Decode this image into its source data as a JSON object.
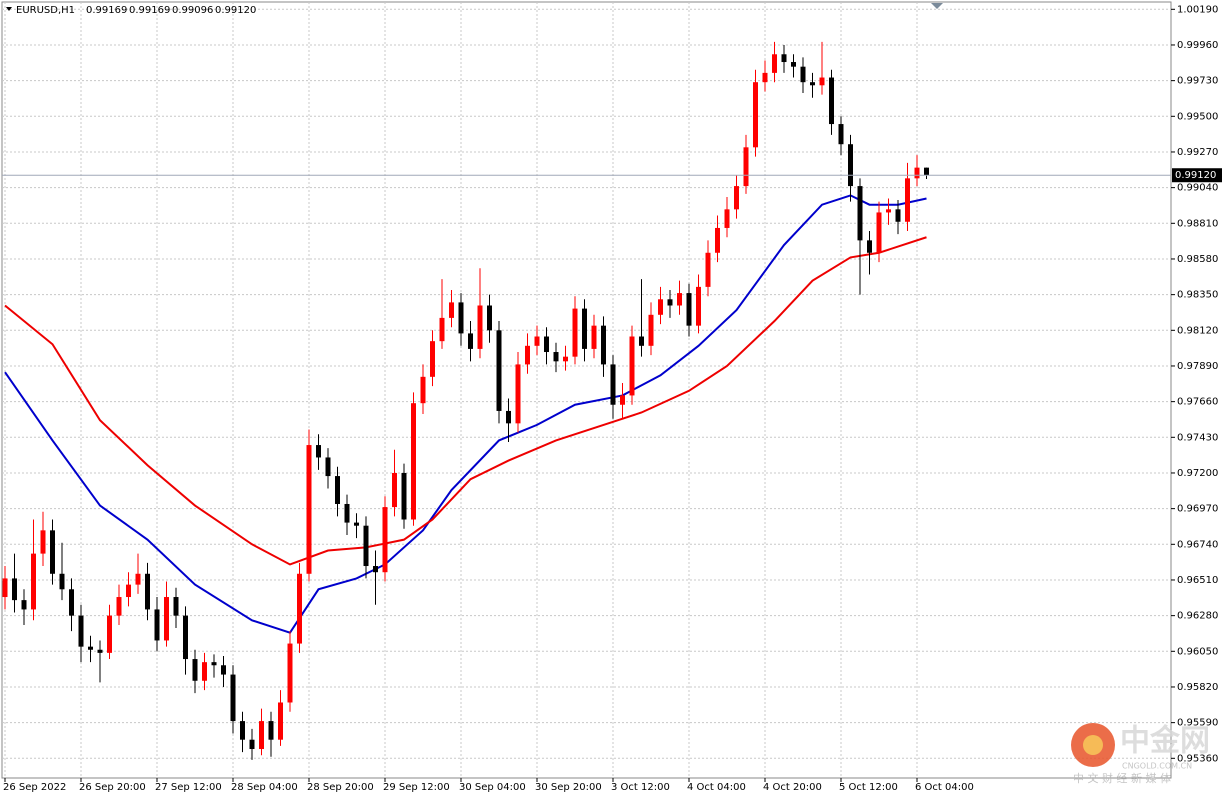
{
  "chart_data": {
    "type": "candlestick",
    "symbol": "EURUSD,H1",
    "ohlc_labels": [
      "0.99169",
      "0.99169",
      "0.99096",
      "0.99120"
    ],
    "price": 0.9912,
    "price_label": "0.99120",
    "up_color": "#ff0000",
    "down_color": "#000000",
    "grid": true,
    "watermark": {
      "logo": "中金网",
      "site": "CNGOLD.COM.CN",
      "tagline": "中 文 财 经 新 媒 体"
    },
    "ylim": [
      0.95233,
      1.0025
    ],
    "yticks": [
      {
        "value": 1.0019,
        "label": "1.00190"
      },
      {
        "value": 0.9996,
        "label": "0.99960"
      },
      {
        "value": 0.9973,
        "label": "0.99730"
      },
      {
        "value": 0.995,
        "label": "0.99500"
      },
      {
        "value": 0.9927,
        "label": "0.99270"
      },
      {
        "value": 0.9904,
        "label": "0.99040"
      },
      {
        "value": 0.9881,
        "label": "0.98810"
      },
      {
        "value": 0.9858,
        "label": "0.98580"
      },
      {
        "value": 0.9835,
        "label": "0.98350"
      },
      {
        "value": 0.9812,
        "label": "0.98120"
      },
      {
        "value": 0.9789,
        "label": "0.97890"
      },
      {
        "value": 0.9766,
        "label": "0.97660"
      },
      {
        "value": 0.9743,
        "label": "0.97430"
      },
      {
        "value": 0.972,
        "label": "0.97200"
      },
      {
        "value": 0.9697,
        "label": "0.96970"
      },
      {
        "value": 0.9674,
        "label": "0.96740"
      },
      {
        "value": 0.9651,
        "label": "0.96510"
      },
      {
        "value": 0.9628,
        "label": "0.96280"
      },
      {
        "value": 0.9605,
        "label": "0.96050"
      },
      {
        "value": 0.9582,
        "label": "0.95820"
      },
      {
        "value": 0.9559,
        "label": "0.95590"
      },
      {
        "value": 0.9536,
        "label": "0.95360"
      }
    ],
    "categories": [
      "26 Sep 2022",
      null,
      null,
      null,
      null,
      null,
      null,
      null,
      "26 Sep 20:00",
      null,
      null,
      null,
      null,
      null,
      null,
      null,
      "27 Sep 12:00",
      null,
      null,
      null,
      null,
      null,
      null,
      null,
      "28 Sep 04:00",
      null,
      null,
      null,
      null,
      null,
      null,
      null,
      "28 Sep 20:00",
      null,
      null,
      null,
      null,
      null,
      null,
      null,
      "29 Sep 12:00",
      null,
      null,
      null,
      null,
      null,
      null,
      null,
      "30 Sep 04:00",
      null,
      null,
      null,
      null,
      null,
      null,
      null,
      "30 Sep 20:00",
      null,
      null,
      null,
      null,
      null,
      null,
      null,
      "3 Oct 12:00",
      null,
      null,
      null,
      null,
      null,
      null,
      null,
      "4 Oct 04:00",
      null,
      null,
      null,
      null,
      null,
      null,
      null,
      "4 Oct 20:00",
      null,
      null,
      null,
      null,
      null,
      null,
      null,
      "5 Oct 12:00",
      null,
      null,
      null,
      null,
      null,
      null,
      null,
      "6 Oct 04:00",
      null
    ],
    "open": [
      0.964,
      0.9652,
      0.9638,
      0.9632,
      0.9668,
      0.9683,
      0.9655,
      0.9645,
      0.9628,
      0.9608,
      0.9606,
      0.9604,
      0.9628,
      0.964,
      0.9648,
      0.9655,
      0.9632,
      0.9612,
      0.964,
      0.9628,
      0.96,
      0.9586,
      0.9598,
      0.9596,
      0.959,
      0.956,
      0.9548,
      0.9542,
      0.956,
      0.9548,
      0.9572,
      0.961,
      0.9655,
      0.9738,
      0.973,
      0.9718,
      0.97,
      0.9688,
      0.9686,
      0.966,
      0.9656,
      0.9698,
      0.972,
      0.969,
      0.9765,
      0.9782,
      0.9805,
      0.982,
      0.983,
      0.981,
      0.98,
      0.9828,
      0.9812,
      0.976,
      0.9752,
      0.979,
      0.9802,
      0.9808,
      0.9798,
      0.9792,
      0.9795,
      0.9826,
      0.98,
      0.9815,
      0.979,
      0.9764,
      0.977,
      0.9808,
      0.9802,
      0.9822,
      0.9832,
      0.9828,
      0.9836,
      0.9815,
      0.984,
      0.9862,
      0.9878,
      0.989,
      0.9905,
      0.993,
      0.9972,
      0.9978,
      0.999,
      0.9985,
      0.9982,
      0.9972,
      0.997,
      0.9975,
      0.9945,
      0.9932,
      0.9905,
      0.987,
      0.9862,
      0.9888,
      0.989,
      0.9882,
      0.991,
      0.99169
    ],
    "high": [
      0.966,
      0.9668,
      0.9645,
      0.969,
      0.9695,
      0.969,
      0.9675,
      0.9652,
      0.9635,
      0.9615,
      0.9612,
      0.9635,
      0.9648,
      0.9656,
      0.9668,
      0.9662,
      0.964,
      0.965,
      0.9646,
      0.9634,
      0.9606,
      0.9604,
      0.9603,
      0.9602,
      0.9596,
      0.9566,
      0.9555,
      0.9568,
      0.9566,
      0.958,
      0.9618,
      0.9662,
      0.9748,
      0.9745,
      0.9736,
      0.9724,
      0.9706,
      0.9694,
      0.9692,
      0.967,
      0.9705,
      0.9735,
      0.9726,
      0.9772,
      0.979,
      0.9812,
      0.9845,
      0.9838,
      0.9836,
      0.9818,
      0.9852,
      0.9835,
      0.9818,
      0.9768,
      0.9798,
      0.981,
      0.9815,
      0.9814,
      0.9804,
      0.9802,
      0.9834,
      0.9832,
      0.9822,
      0.9821,
      0.9796,
      0.9778,
      0.9815,
      0.9845,
      0.983,
      0.984,
      0.9838,
      0.9844,
      0.9842,
      0.9848,
      0.987,
      0.9886,
      0.9898,
      0.9912,
      0.9938,
      0.998,
      0.9986,
      0.9998,
      0.9996,
      0.999,
      0.9988,
      0.9978,
      0.9998,
      0.998,
      0.995,
      0.9938,
      0.991,
      0.9876,
      0.9895,
      0.9897,
      0.9896,
      0.992,
      0.9925,
      0.99169
    ],
    "low": [
      0.9632,
      0.963,
      0.9622,
      0.9625,
      0.966,
      0.9648,
      0.9638,
      0.9618,
      0.9598,
      0.9598,
      0.9585,
      0.96,
      0.9622,
      0.9634,
      0.9642,
      0.9625,
      0.9605,
      0.9608,
      0.962,
      0.959,
      0.9578,
      0.958,
      0.9588,
      0.9582,
      0.9552,
      0.954,
      0.9535,
      0.9538,
      0.9537,
      0.9544,
      0.9566,
      0.9604,
      0.965,
      0.9722,
      0.971,
      0.9692,
      0.968,
      0.9678,
      0.9652,
      0.9635,
      0.965,
      0.9692,
      0.9684,
      0.9686,
      0.9758,
      0.9776,
      0.98,
      0.9814,
      0.9802,
      0.9792,
      0.9794,
      0.9804,
      0.9752,
      0.974,
      0.9746,
      0.9784,
      0.9796,
      0.979,
      0.9785,
      0.9786,
      0.979,
      0.9792,
      0.9794,
      0.9782,
      0.9755,
      0.9755,
      0.9764,
      0.9795,
      0.9796,
      0.9816,
      0.982,
      0.9822,
      0.9808,
      0.981,
      0.9834,
      0.9856,
      0.9872,
      0.9884,
      0.99,
      0.9924,
      0.9966,
      0.9972,
      0.9978,
      0.9975,
      0.9965,
      0.9962,
      0.9964,
      0.9938,
      0.9925,
      0.9895,
      0.9835,
      0.9848,
      0.9856,
      0.988,
      0.9874,
      0.9876,
      0.9905,
      0.99096
    ],
    "close": [
      0.9652,
      0.9638,
      0.9632,
      0.9668,
      0.9683,
      0.9655,
      0.9645,
      0.9628,
      0.9608,
      0.9606,
      0.9604,
      0.9628,
      0.964,
      0.9648,
      0.9655,
      0.9632,
      0.9612,
      0.964,
      0.9628,
      0.96,
      0.9586,
      0.9598,
      0.9596,
      0.959,
      0.956,
      0.9548,
      0.9542,
      0.956,
      0.9548,
      0.9572,
      0.961,
      0.9655,
      0.9738,
      0.973,
      0.9718,
      0.97,
      0.9688,
      0.9686,
      0.966,
      0.9656,
      0.9698,
      0.972,
      0.969,
      0.9765,
      0.9782,
      0.9805,
      0.982,
      0.983,
      0.981,
      0.98,
      0.9828,
      0.9812,
      0.976,
      0.9752,
      0.979,
      0.9802,
      0.9808,
      0.9798,
      0.9792,
      0.9795,
      0.9826,
      0.98,
      0.9815,
      0.979,
      0.9764,
      0.977,
      0.9808,
      0.9802,
      0.9822,
      0.9832,
      0.9828,
      0.9836,
      0.9815,
      0.984,
      0.9862,
      0.9878,
      0.989,
      0.9905,
      0.993,
      0.9972,
      0.9978,
      0.999,
      0.9985,
      0.9982,
      0.9972,
      0.997,
      0.9975,
      0.9945,
      0.9932,
      0.9905,
      0.987,
      0.9862,
      0.9888,
      0.989,
      0.9882,
      0.991,
      0.99169,
      0.9912
    ],
    "overlays": [
      {
        "color": "#0000cc",
        "x": [
          0,
          5,
          10,
          15,
          20,
          26,
          30,
          33,
          37,
          40,
          44,
          47,
          52,
          56,
          60,
          65,
          69,
          73,
          77,
          82,
          86,
          89,
          91,
          94,
          97
        ],
        "values": [
          0.9785,
          0.9741,
          0.9699,
          0.9677,
          0.9648,
          0.9625,
          0.9617,
          0.9645,
          0.9652,
          0.9661,
          0.9683,
          0.9709,
          0.9741,
          0.9751,
          0.9764,
          0.977,
          0.9783,
          0.9802,
          0.9825,
          0.9867,
          0.9893,
          0.9899,
          0.9893,
          0.9893,
          0.9897
        ]
      },
      {
        "color": "#ee0000",
        "x": [
          0,
          5,
          10,
          15,
          20,
          26,
          30,
          34,
          38,
          42,
          45,
          49,
          53,
          58,
          63,
          67,
          72,
          76,
          81,
          85,
          89,
          92,
          97
        ],
        "values": [
          0.9828,
          0.9803,
          0.9754,
          0.9725,
          0.9699,
          0.9674,
          0.9661,
          0.967,
          0.9672,
          0.9677,
          0.969,
          0.9716,
          0.9728,
          0.9741,
          0.9751,
          0.9759,
          0.9773,
          0.9789,
          0.9818,
          0.9844,
          0.9859,
          0.9862,
          0.9872
        ]
      }
    ]
  }
}
